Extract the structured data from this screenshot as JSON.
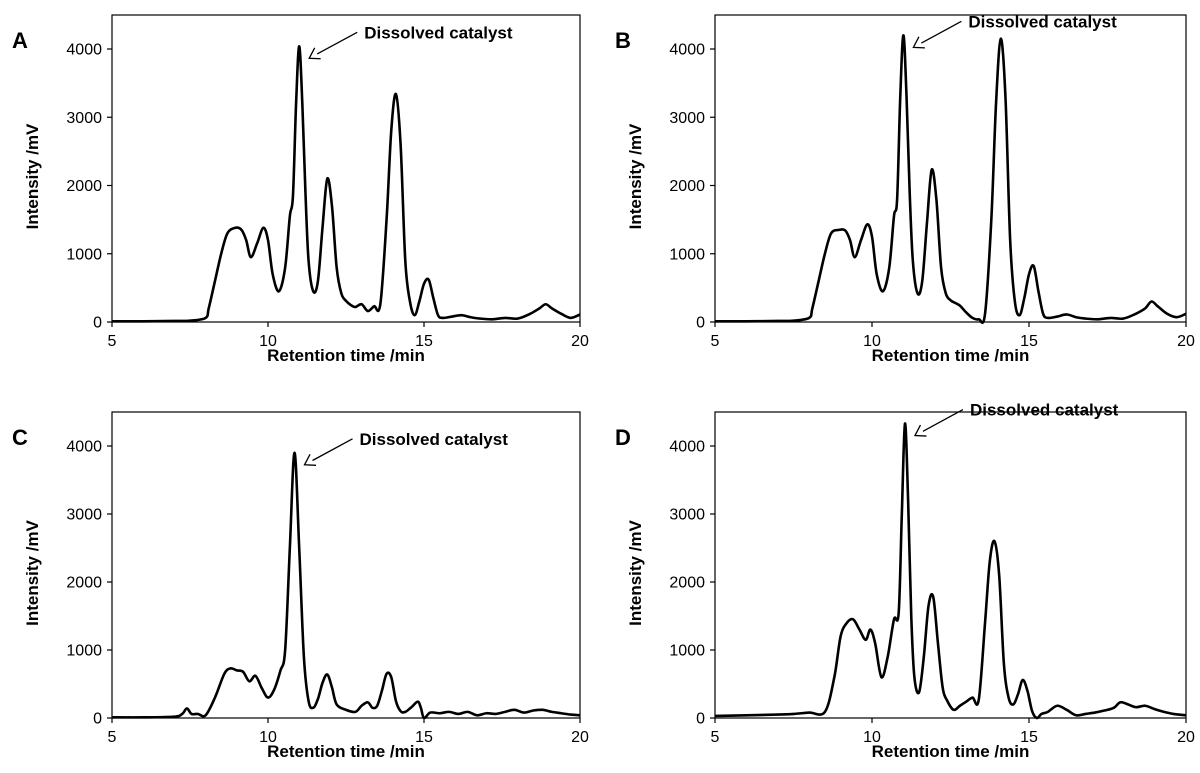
{
  "chart_data": [
    {
      "panel": "A",
      "type": "line",
      "xlabel": "Retention time /min",
      "ylabel": "Intensity /mV",
      "xlim": [
        5,
        20
      ],
      "ylim": [
        0,
        4000
      ],
      "xticks": [
        5,
        10,
        15,
        20
      ],
      "yticks": [
        0,
        1000,
        2000,
        3000,
        4000
      ],
      "annotation": {
        "text": "Dissolved catalyst",
        "x": 11.0,
        "y": 4040
      },
      "series": [
        {
          "x": [
            5.0,
            6.0,
            7.0,
            7.5,
            8.0,
            8.1,
            8.3,
            8.5,
            8.7,
            8.95,
            9.15,
            9.3,
            9.45,
            9.65,
            9.85,
            10.0,
            10.15,
            10.35,
            10.55,
            10.7,
            10.8,
            10.9,
            11.0,
            11.1,
            11.2,
            11.3,
            11.45,
            11.6,
            11.75,
            11.9,
            12.05,
            12.2,
            12.35,
            12.5,
            12.65,
            12.8,
            13.0,
            13.2,
            13.4,
            13.6,
            13.8,
            13.95,
            14.1,
            14.25,
            14.4,
            14.55,
            14.7,
            14.85,
            15.0,
            15.15,
            15.3,
            15.45,
            15.6,
            15.9,
            16.2,
            16.5,
            16.8,
            17.2,
            17.6,
            18.0,
            18.4,
            18.7,
            18.9,
            19.1,
            19.4,
            19.7,
            20.0
          ],
          "y": [
            10,
            10,
            15,
            20,
            60,
            200,
            600,
            1000,
            1300,
            1380,
            1350,
            1200,
            950,
            1150,
            1380,
            1200,
            700,
            450,
            800,
            1550,
            1850,
            3200,
            4040,
            3200,
            1900,
            900,
            450,
            600,
            1400,
            2100,
            1700,
            800,
            420,
            310,
            250,
            220,
            260,
            160,
            230,
            260,
            1500,
            2800,
            3340,
            2600,
            900,
            300,
            100,
            300,
            560,
            620,
            350,
            100,
            60,
            80,
            100,
            70,
            50,
            40,
            60,
            50,
            120,
            200,
            260,
            200,
            120,
            60,
            110
          ]
        }
      ]
    },
    {
      "panel": "B",
      "type": "line",
      "xlabel": "Retention time /min",
      "ylabel": "Intensity /mV",
      "xlim": [
        5,
        20
      ],
      "ylim": [
        0,
        4000
      ],
      "xticks": [
        5,
        10,
        15,
        20
      ],
      "yticks": [
        0,
        1000,
        2000,
        3000,
        4000
      ],
      "annotation": {
        "text": "Dissolved catalyst",
        "x": 11.0,
        "y": 4200
      },
      "series": [
        {
          "x": [
            5.0,
            6.0,
            7.0,
            7.5,
            8.0,
            8.1,
            8.3,
            8.5,
            8.7,
            8.95,
            9.15,
            9.3,
            9.45,
            9.65,
            9.85,
            10.0,
            10.15,
            10.35,
            10.55,
            10.7,
            10.8,
            10.9,
            11.0,
            11.1,
            11.2,
            11.3,
            11.45,
            11.6,
            11.75,
            11.9,
            12.05,
            12.2,
            12.35,
            12.5,
            12.65,
            12.8,
            13.0,
            13.2,
            13.4,
            13.6,
            13.8,
            13.95,
            14.1,
            14.25,
            14.4,
            14.55,
            14.7,
            14.85,
            15.0,
            15.15,
            15.3,
            15.45,
            15.6,
            15.9,
            16.2,
            16.5,
            16.8,
            17.2,
            17.6,
            18.0,
            18.4,
            18.7,
            18.9,
            19.1,
            19.4,
            19.7,
            20.0
          ],
          "y": [
            10,
            10,
            15,
            20,
            60,
            200,
            600,
            1000,
            1300,
            1350,
            1340,
            1200,
            950,
            1200,
            1430,
            1250,
            700,
            450,
            800,
            1550,
            1800,
            3300,
            4200,
            3300,
            1900,
            900,
            420,
            600,
            1450,
            2230,
            1800,
            800,
            420,
            320,
            280,
            240,
            140,
            60,
            40,
            120,
            1500,
            3200,
            4150,
            3300,
            1200,
            300,
            100,
            350,
            700,
            820,
            450,
            120,
            60,
            80,
            110,
            70,
            50,
            40,
            60,
            50,
            120,
            200,
            300,
            230,
            120,
            70,
            120
          ]
        }
      ]
    },
    {
      "panel": "C",
      "type": "line",
      "xlabel": "Retention time /min",
      "ylabel": "Intensity /mV",
      "xlim": [
        5,
        20
      ],
      "ylim": [
        0,
        4000
      ],
      "xticks": [
        5,
        10,
        15,
        20
      ],
      "yticks": [
        0,
        1000,
        2000,
        3000,
        4000
      ],
      "annotation": {
        "text": "Dissolved catalyst",
        "x": 10.85,
        "y": 3900
      },
      "series": [
        {
          "x": [
            5.0,
            6.0,
            7.0,
            7.25,
            7.4,
            7.55,
            7.75,
            8.0,
            8.3,
            8.6,
            8.8,
            9.0,
            9.2,
            9.4,
            9.6,
            9.8,
            10.0,
            10.2,
            10.4,
            10.55,
            10.7,
            10.85,
            11.0,
            11.15,
            11.3,
            11.45,
            11.6,
            11.75,
            11.9,
            12.05,
            12.2,
            12.5,
            12.8,
            13.0,
            13.2,
            13.35,
            13.5,
            13.65,
            13.8,
            13.95,
            14.1,
            14.25,
            14.4,
            14.6,
            14.8,
            14.9,
            15.0,
            15.2,
            15.5,
            15.8,
            16.1,
            16.4,
            16.7,
            17.0,
            17.3,
            17.6,
            17.9,
            18.2,
            18.5,
            18.8,
            19.1,
            19.4,
            19.7,
            20.0
          ],
          "y": [
            10,
            10,
            20,
            60,
            140,
            60,
            60,
            40,
            300,
            650,
            730,
            700,
            680,
            540,
            620,
            440,
            300,
            420,
            700,
            1000,
            2500,
            3900,
            2500,
            900,
            250,
            150,
            280,
            520,
            640,
            450,
            200,
            120,
            90,
            180,
            230,
            150,
            180,
            400,
            650,
            600,
            250,
            100,
            90,
            160,
            240,
            150,
            0,
            80,
            70,
            90,
            60,
            90,
            40,
            70,
            60,
            90,
            120,
            80,
            110,
            120,
            90,
            70,
            50,
            40
          ]
        }
      ]
    },
    {
      "panel": "D",
      "type": "line",
      "xlabel": "Retention time /min",
      "ylabel": "Intensity /mV",
      "xlim": [
        5,
        20
      ],
      "ylim": [
        0,
        4000
      ],
      "xticks": [
        5,
        10,
        15,
        20
      ],
      "yticks": [
        0,
        1000,
        2000,
        3000,
        4000
      ],
      "annotation": {
        "text": "Dissolved catalyst",
        "x": 11.05,
        "y": 4330
      },
      "series": [
        {
          "x": [
            5.0,
            6.0,
            7.0,
            7.5,
            8.0,
            8.5,
            8.8,
            9.0,
            9.2,
            9.4,
            9.6,
            9.8,
            9.95,
            10.1,
            10.3,
            10.5,
            10.7,
            10.85,
            10.95,
            11.05,
            11.15,
            11.25,
            11.35,
            11.5,
            11.65,
            11.8,
            11.95,
            12.1,
            12.25,
            12.4,
            12.6,
            12.8,
            13.0,
            13.2,
            13.4,
            13.6,
            13.75,
            13.9,
            14.05,
            14.2,
            14.35,
            14.5,
            14.65,
            14.8,
            14.95,
            15.1,
            15.25,
            15.4,
            15.6,
            15.9,
            16.2,
            16.5,
            16.8,
            17.1,
            17.4,
            17.7,
            17.9,
            18.1,
            18.4,
            18.7,
            19.0,
            19.3,
            19.6,
            20.0
          ],
          "y": [
            30,
            40,
            50,
            60,
            80,
            90,
            600,
            1200,
            1400,
            1450,
            1300,
            1150,
            1300,
            1100,
            600,
            900,
            1450,
            1550,
            3000,
            4330,
            3200,
            1500,
            600,
            380,
            900,
            1650,
            1780,
            1100,
            450,
            250,
            120,
            180,
            240,
            300,
            270,
            1400,
            2300,
            2600,
            2100,
            800,
            300,
            200,
            350,
            560,
            400,
            100,
            0,
            60,
            90,
            180,
            120,
            40,
            60,
            80,
            110,
            150,
            230,
            210,
            160,
            180,
            130,
            90,
            60,
            40
          ]
        }
      ]
    }
  ]
}
